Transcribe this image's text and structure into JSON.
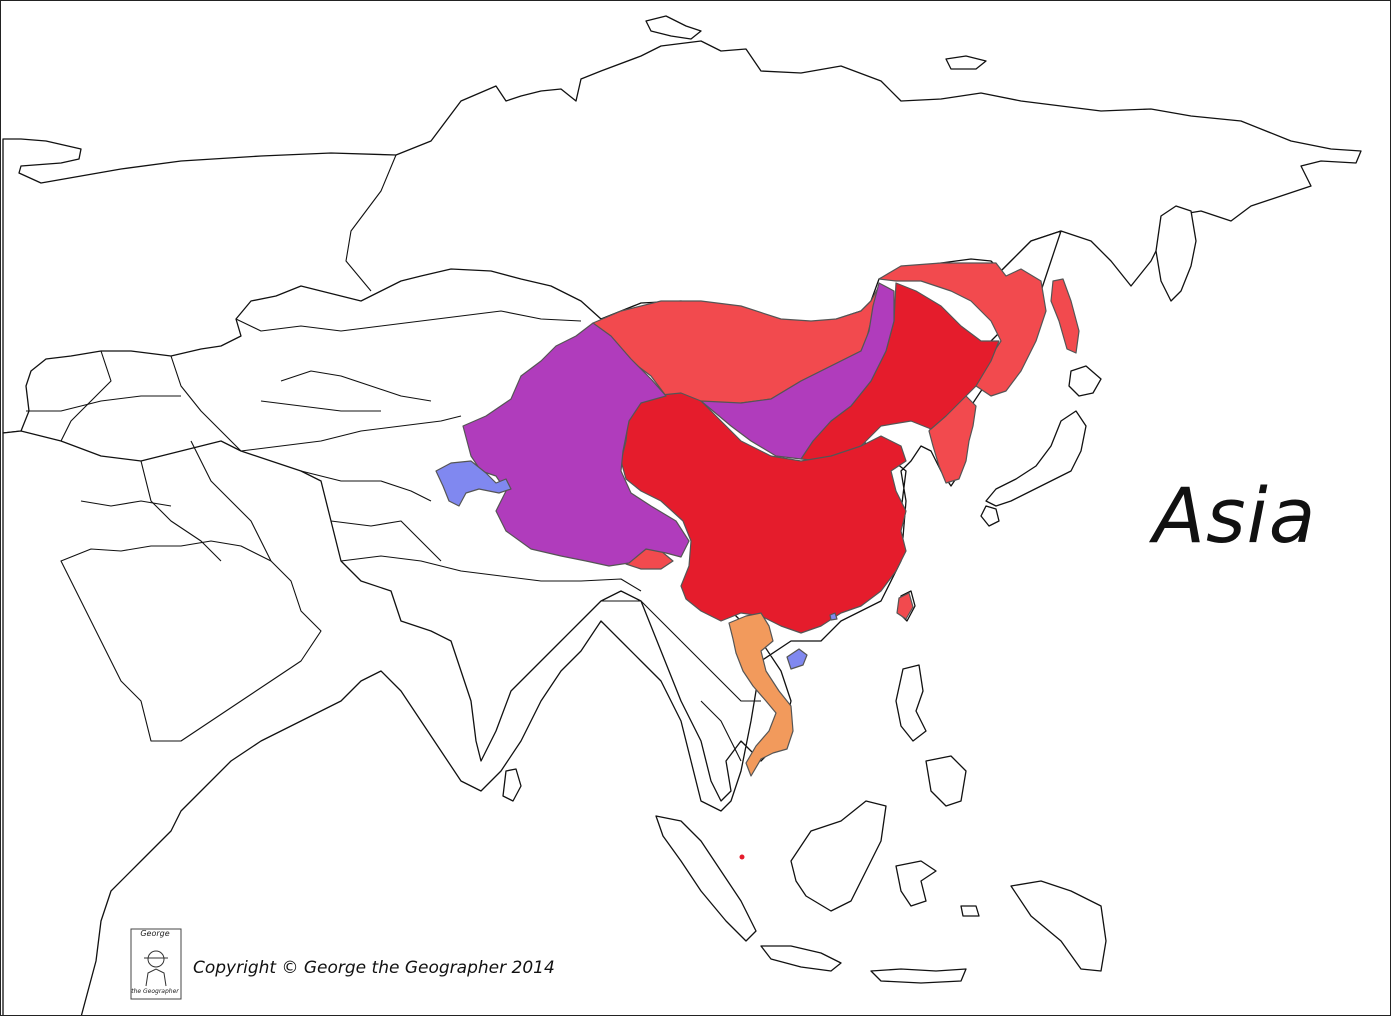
{
  "map": {
    "title": "Asia",
    "copyright": "Copyright © George the Geographer 2014",
    "logo": {
      "top_text": "George",
      "bottom_text": "the Geographer"
    },
    "colors": {
      "land": "#ffffff",
      "outline": "#111111",
      "red": "#e51c2c",
      "light_red": "#f24a4e",
      "purple": "#b03cbc",
      "blue": "#8088f0",
      "orange": "#f29a5c"
    }
  }
}
